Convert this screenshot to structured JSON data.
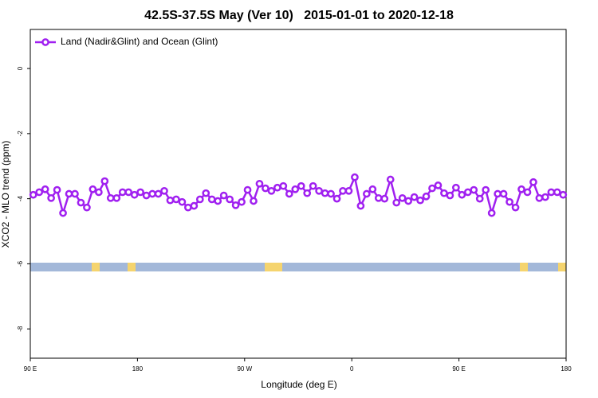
{
  "chart_data": {
    "type": "line",
    "title": "42.5S-37.5S May (Ver 10)   2015-01-01 to 2020-12-18",
    "x_label": "Longitude (deg E)",
    "y_label": "XCO2 - MLO trend (ppm)",
    "legend_position": "top-left",
    "xlim": [
      90,
      540
    ],
    "xticks": [
      {
        "value": 90,
        "label": "90 E"
      },
      180,
      {
        "value": 270,
        "label": "90 W"
      },
      {
        "value": 360,
        "label": "0"
      },
      {
        "value": 450,
        "label": "90 E"
      },
      {
        "value": 540,
        "label": "180"
      }
    ],
    "ylim": [
      -8.9,
      1.2
    ],
    "yticks": [
      0,
      -2,
      -4,
      -6,
      -8
    ],
    "x": [
      92.5,
      97.5,
      102.5,
      107.5,
      112.5,
      117.5,
      122.5,
      127.5,
      132.5,
      137.5,
      142.5,
      147.5,
      152.5,
      157.5,
      162.5,
      167.5,
      172.5,
      177.5,
      182.5,
      187.5,
      192.5,
      197.5,
      202.5,
      207.5,
      212.5,
      217.5,
      222.5,
      227.5,
      232.5,
      237.5,
      242.5,
      247.5,
      252.5,
      257.5,
      262.5,
      267.5,
      272.5,
      277.5,
      282.5,
      287.5,
      292.5,
      297.5,
      302.5,
      307.5,
      312.5,
      317.5,
      322.5,
      327.5,
      332.5,
      337.5,
      342.5,
      347.5,
      352.5,
      357.5,
      362.5,
      367.5,
      372.5,
      377.5,
      382.5,
      387.5,
      392.5,
      397.5,
      402.5,
      407.5,
      412.5,
      417.5,
      422.5,
      427.5,
      432.5,
      437.5,
      442.5,
      447.5,
      452.5,
      457.5,
      462.5,
      467.5,
      472.5,
      477.5,
      482.5,
      487.5,
      492.5,
      497.5,
      502.5,
      507.5,
      512.5,
      517.5,
      522.5,
      527.5,
      532.5,
      537.5
    ],
    "series": [
      {
        "name": "Land (Nadir&Glint) and Ocean (Glint)",
        "color": "#a020f0",
        "values": [
          -3.88,
          -3.8,
          -3.71,
          -3.98,
          -3.73,
          -4.44,
          -3.85,
          -3.85,
          -4.12,
          -4.27,
          -3.71,
          -3.8,
          -3.46,
          -3.98,
          -3.98,
          -3.8,
          -3.8,
          -3.88,
          -3.8,
          -3.9,
          -3.85,
          -3.85,
          -3.76,
          -4.05,
          -4.02,
          -4.1,
          -4.27,
          -4.22,
          -4.02,
          -3.83,
          -4.02,
          -4.07,
          -3.9,
          -4.02,
          -4.2,
          -4.1,
          -3.73,
          -4.07,
          -3.54,
          -3.68,
          -3.76,
          -3.66,
          -3.61,
          -3.85,
          -3.71,
          -3.61,
          -3.83,
          -3.61,
          -3.76,
          -3.83,
          -3.85,
          -4.0,
          -3.76,
          -3.76,
          -3.34,
          -4.22,
          -3.85,
          -3.71,
          -3.98,
          -4.0,
          -3.41,
          -4.12,
          -3.98,
          -4.07,
          -3.95,
          -4.05,
          -3.93,
          -3.68,
          -3.59,
          -3.83,
          -3.9,
          -3.66,
          -3.88,
          -3.8,
          -3.73,
          -4.0,
          -3.73,
          -4.44,
          -3.85,
          -3.85,
          -4.1,
          -4.27,
          -3.71,
          -3.8,
          -3.49,
          -3.98,
          -3.95,
          -3.8,
          -3.8,
          -3.88
        ]
      }
    ]
  }
}
